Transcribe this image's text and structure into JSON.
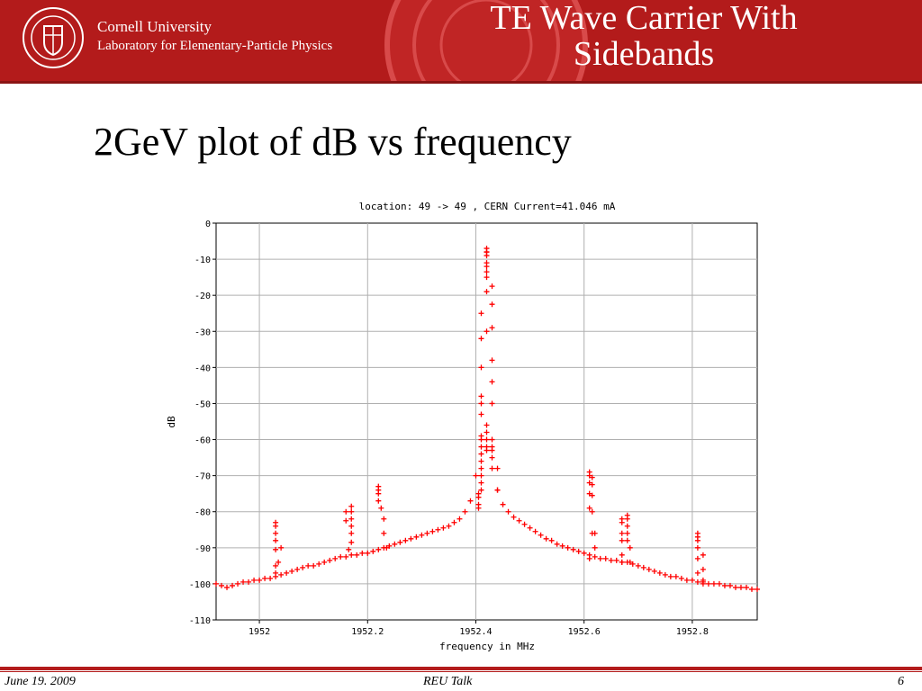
{
  "header": {
    "university": "Cornell University",
    "lab": "Laboratory for Elementary-Particle Physics",
    "title": "TE Wave Carrier With Sidebands",
    "seal_text": "CORNELL UNIVERSITY FOUNDED A.D. 1865",
    "brand_color": "#b31b1b"
  },
  "slide": {
    "subtitle": "2GeV plot of dB vs frequency"
  },
  "footer": {
    "date": "June 19. 2009",
    "talk": "REU Talk",
    "page": "6"
  },
  "chart_data": {
    "type": "scatter",
    "title": "location: 49 -> 49 , CERN Current=41.046 mA",
    "xlabel": "frequency in MHz",
    "ylabel": "dB",
    "xlim": [
      1951.92,
      1952.92
    ],
    "ylim": [
      -110,
      0
    ],
    "xticks": [
      "1952",
      "1952.2",
      "1952.4",
      "1952.6",
      "1952.8"
    ],
    "xtick_values": [
      1952.0,
      1952.2,
      1952.4,
      1952.6,
      1952.8
    ],
    "yticks": [
      0,
      -10,
      -20,
      -30,
      -40,
      -50,
      -60,
      -70,
      -80,
      -90,
      -100,
      -110
    ],
    "grid": true,
    "marker": "+",
    "color": "#ff0000",
    "series": [
      {
        "x": [
          1951.92,
          1951.93,
          1951.94,
          1951.95,
          1951.96,
          1951.97,
          1951.98,
          1951.99,
          1952.0,
          1952.01,
          1952.02,
          1952.03,
          1952.04,
          1952.05,
          1952.06,
          1952.07,
          1952.08,
          1952.09,
          1952.1,
          1952.11,
          1952.12,
          1952.13,
          1952.14,
          1952.15,
          1952.16,
          1952.17,
          1952.18,
          1952.19,
          1952.2,
          1952.21,
          1952.22,
          1952.23,
          1952.24,
          1952.25,
          1952.26,
          1952.27,
          1952.28,
          1952.29,
          1952.3,
          1952.31,
          1952.32,
          1952.33,
          1952.34,
          1952.35,
          1952.36,
          1952.37,
          1952.38,
          1952.39,
          1952.4,
          1952.41,
          1952.42,
          1952.43,
          1952.44,
          1952.45,
          1952.46,
          1952.47,
          1952.48,
          1952.49,
          1952.5,
          1952.51,
          1952.52,
          1952.53,
          1952.54,
          1952.55,
          1952.56,
          1952.57,
          1952.58,
          1952.59,
          1952.6,
          1952.61,
          1952.62,
          1952.63,
          1952.64,
          1952.65,
          1952.66,
          1952.67,
          1952.68,
          1952.69,
          1952.7,
          1952.71,
          1952.72,
          1952.73,
          1952.74,
          1952.75,
          1952.76,
          1952.77,
          1952.78,
          1952.79,
          1952.8,
          1952.81,
          1952.82,
          1952.83,
          1952.84,
          1952.85,
          1952.86,
          1952.87,
          1952.88,
          1952.89,
          1952.9,
          1952.91,
          1952.92
        ],
        "y": [
          -100,
          -100.5,
          -101,
          -100.5,
          -100,
          -99.5,
          -99.5,
          -99,
          -99,
          -98.5,
          -98.5,
          -98,
          -97.5,
          -97,
          -96.5,
          -96,
          -95.5,
          -95,
          -95,
          -94.5,
          -94,
          -93.5,
          -93,
          -92.5,
          -92.5,
          -92,
          -92,
          -91.5,
          -91.5,
          -91,
          -90.5,
          -90,
          -89.5,
          -89,
          -88.5,
          -88,
          -87.5,
          -87,
          -86.5,
          -86,
          -85.5,
          -85,
          -84.5,
          -84,
          -83,
          -82,
          -80,
          -77,
          -70,
          -50,
          -8,
          -62,
          -74,
          -78,
          -80,
          -81.5,
          -82.5,
          -83.5,
          -84.5,
          -85.5,
          -86.5,
          -87.5,
          -88,
          -89,
          -89.5,
          -90,
          -90.5,
          -91,
          -91.5,
          -92,
          -92.5,
          -93,
          -93,
          -93.5,
          -93.5,
          -94,
          -94,
          -94.5,
          -95,
          -95.5,
          -96,
          -96.5,
          -97,
          -97.5,
          -98,
          -98,
          -98.5,
          -99,
          -99,
          -99.5,
          -99.5,
          -100,
          -100,
          -100,
          -100.5,
          -100.5,
          -101,
          -101,
          -101,
          -101.5,
          -101.5
        ]
      },
      {
        "name": "sideband-1952.03",
        "x": [
          1952.03,
          1952.03,
          1952.03,
          1952.03,
          1952.03,
          1952.03,
          1952.03,
          1952.035,
          1952.04
        ],
        "y": [
          -83,
          -84,
          -86,
          -88,
          -90.5,
          -95,
          -97,
          -94,
          -90
        ]
      },
      {
        "name": "sideband-1952.17",
        "x": [
          1952.16,
          1952.16,
          1952.17,
          1952.17,
          1952.17,
          1952.17,
          1952.17,
          1952.17,
          1952.165
        ],
        "y": [
          -80,
          -82.5,
          -78.5,
          -80,
          -82,
          -84,
          -86,
          -88.5,
          -90.5
        ]
      },
      {
        "name": "sideband-1952.225",
        "x": [
          1952.22,
          1952.22,
          1952.22,
          1952.22,
          1952.225,
          1952.23,
          1952.23,
          1952.235
        ],
        "y": [
          -73,
          -74,
          -75,
          -77,
          -79,
          -82,
          -86,
          -90
        ]
      },
      {
        "name": "peak-1952.41",
        "x": [
          1952.41,
          1952.41,
          1952.41,
          1952.41,
          1952.41,
          1952.41,
          1952.41,
          1952.41,
          1952.41,
          1952.41,
          1952.41,
          1952.41,
          1952.41,
          1952.41,
          1952.42,
          1952.42,
          1952.42,
          1952.42,
          1952.42,
          1952.42,
          1952.42,
          1952.42,
          1952.42,
          1952.42,
          1952.42,
          1952.42,
          1952.42,
          1952.42,
          1952.43,
          1952.43,
          1952.43,
          1952.43,
          1952.43,
          1952.43,
          1952.43,
          1952.43,
          1952.43,
          1952.43,
          1952.405,
          1952.405,
          1952.405,
          1952.405,
          1952.44,
          1952.44
        ],
        "y": [
          -25,
          -32,
          -40,
          -48,
          -53,
          -59,
          -60,
          -62,
          -64,
          -66,
          -68,
          -70,
          -72,
          -74,
          -7,
          -8,
          -9,
          -11,
          -12,
          -13.5,
          -15,
          -19,
          -30,
          -56,
          -58,
          -60,
          -62,
          -63,
          -17.5,
          -22.5,
          -29,
          -38,
          -44,
          -50,
          -60,
          -63,
          -65,
          -68,
          -75,
          -76,
          -78,
          -79,
          -68,
          -74
        ]
      },
      {
        "name": "sideband-1952.61",
        "x": [
          1952.61,
          1952.61,
          1952.61,
          1952.61,
          1952.61,
          1952.615,
          1952.615,
          1952.615,
          1952.615,
          1952.615,
          1952.62,
          1952.62,
          1952.61
        ],
        "y": [
          -69,
          -70,
          -72,
          -75,
          -79,
          -70.5,
          -72.5,
          -75.5,
          -80,
          -86,
          -86,
          -90,
          -93
        ]
      },
      {
        "name": "sideband-1952.675",
        "x": [
          1952.67,
          1952.67,
          1952.67,
          1952.67,
          1952.67,
          1952.67,
          1952.68,
          1952.68,
          1952.68,
          1952.68,
          1952.68,
          1952.685,
          1952.685
        ],
        "y": [
          -82,
          -83,
          -86,
          -88,
          -92,
          -94,
          -81,
          -82,
          -84,
          -86,
          -88,
          -90,
          -94
        ]
      },
      {
        "name": "sideband-1952.81",
        "x": [
          1952.81,
          1952.81,
          1952.81,
          1952.81,
          1952.81,
          1952.81,
          1952.82,
          1952.82,
          1952.82,
          1952.82
        ],
        "y": [
          -86,
          -87,
          -88,
          -90,
          -93,
          -97,
          -92,
          -96,
          -99,
          -100
        ]
      }
    ]
  }
}
